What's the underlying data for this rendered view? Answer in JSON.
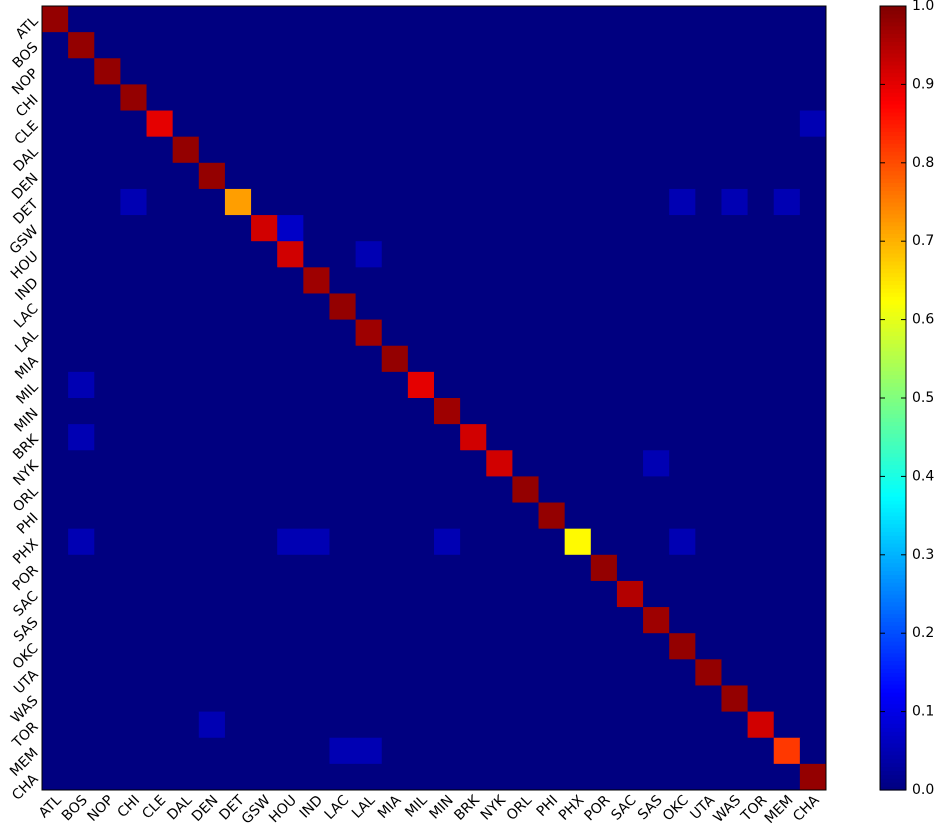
{
  "chart_data": {
    "type": "heatmap",
    "x_categories": [
      "ATL",
      "BOS",
      "NOP",
      "CHI",
      "CLE",
      "DAL",
      "DEN",
      "DET",
      "GSW",
      "HOU",
      "IND",
      "LAC",
      "LAL",
      "MIA",
      "MIL",
      "MIN",
      "BRK",
      "NYK",
      "ORL",
      "PHI",
      "PHX",
      "POR",
      "SAC",
      "SAS",
      "OKC",
      "UTA",
      "WAS",
      "TOR",
      "MEM",
      "CHA"
    ],
    "y_categories": [
      "ATL",
      "BOS",
      "NOP",
      "CHI",
      "CLE",
      "DAL",
      "DEN",
      "DET",
      "GSW",
      "HOU",
      "IND",
      "LAC",
      "LAL",
      "MIA",
      "MIL",
      "MIN",
      "BRK",
      "NYK",
      "ORL",
      "PHI",
      "PHX",
      "POR",
      "SAC",
      "SAS",
      "OKC",
      "UTA",
      "WAS",
      "TOR",
      "MEM",
      "CHA"
    ],
    "values": [
      [
        0.98,
        0,
        0,
        0,
        0,
        0,
        0,
        0,
        0,
        0,
        0,
        0,
        0,
        0,
        0,
        0,
        0,
        0,
        0,
        0,
        0,
        0,
        0,
        0,
        0,
        0,
        0,
        0,
        0,
        0
      ],
      [
        0,
        0.98,
        0,
        0,
        0,
        0,
        0,
        0,
        0,
        0,
        0,
        0,
        0,
        0,
        0,
        0,
        0,
        0,
        0,
        0,
        0,
        0,
        0,
        0,
        0,
        0,
        0,
        0,
        0,
        0
      ],
      [
        0,
        0,
        0.98,
        0,
        0,
        0,
        0,
        0,
        0,
        0,
        0,
        0,
        0,
        0,
        0,
        0,
        0,
        0,
        0,
        0,
        0,
        0,
        0,
        0,
        0,
        0,
        0,
        0,
        0,
        0
      ],
      [
        0,
        0,
        0,
        0.98,
        0,
        0,
        0,
        0,
        0,
        0,
        0,
        0,
        0,
        0,
        0,
        0,
        0,
        0,
        0,
        0,
        0,
        0,
        0,
        0,
        0,
        0,
        0,
        0,
        0,
        0
      ],
      [
        0,
        0,
        0,
        0,
        0.9,
        0,
        0,
        0,
        0,
        0,
        0,
        0,
        0,
        0,
        0,
        0,
        0,
        0,
        0,
        0,
        0,
        0,
        0,
        0,
        0,
        0,
        0,
        0,
        0,
        0.05
      ],
      [
        0,
        0,
        0,
        0,
        0,
        0.98,
        0,
        0,
        0,
        0,
        0,
        0,
        0,
        0,
        0,
        0,
        0,
        0,
        0,
        0,
        0,
        0,
        0,
        0,
        0,
        0,
        0,
        0,
        0,
        0
      ],
      [
        0,
        0,
        0,
        0,
        0,
        0,
        0.98,
        0,
        0,
        0,
        0,
        0,
        0,
        0,
        0,
        0,
        0,
        0,
        0,
        0,
        0,
        0,
        0,
        0,
        0,
        0,
        0,
        0,
        0,
        0
      ],
      [
        0,
        0,
        0,
        0.05,
        0,
        0,
        0,
        0.72,
        0,
        0,
        0,
        0,
        0,
        0,
        0,
        0,
        0,
        0,
        0,
        0,
        0,
        0,
        0,
        0,
        0.05,
        0,
        0.05,
        0,
        0.05,
        0
      ],
      [
        0,
        0,
        0,
        0,
        0,
        0,
        0,
        0,
        0.92,
        0.07,
        0,
        0,
        0,
        0,
        0,
        0,
        0,
        0,
        0,
        0,
        0,
        0,
        0,
        0,
        0,
        0,
        0,
        0,
        0,
        0
      ],
      [
        0,
        0,
        0,
        0,
        0,
        0,
        0,
        0,
        0,
        0.92,
        0,
        0,
        0.05,
        0,
        0,
        0,
        0,
        0,
        0,
        0,
        0,
        0,
        0,
        0,
        0,
        0,
        0,
        0,
        0,
        0
      ],
      [
        0,
        0,
        0,
        0,
        0,
        0,
        0,
        0,
        0,
        0,
        0.97,
        0,
        0,
        0,
        0,
        0,
        0,
        0,
        0,
        0,
        0,
        0,
        0,
        0,
        0,
        0,
        0,
        0,
        0,
        0
      ],
      [
        0,
        0,
        0,
        0,
        0,
        0,
        0,
        0,
        0,
        0,
        0,
        0.98,
        0,
        0,
        0,
        0,
        0,
        0,
        0,
        0,
        0,
        0,
        0,
        0,
        0,
        0,
        0,
        0,
        0,
        0
      ],
      [
        0,
        0,
        0,
        0,
        0,
        0,
        0,
        0,
        0,
        0,
        0,
        0,
        0.97,
        0,
        0,
        0,
        0,
        0,
        0,
        0,
        0,
        0,
        0,
        0,
        0,
        0,
        0,
        0,
        0,
        0
      ],
      [
        0,
        0,
        0,
        0,
        0,
        0,
        0,
        0,
        0,
        0,
        0,
        0,
        0,
        0.98,
        0,
        0,
        0,
        0,
        0,
        0,
        0,
        0,
        0,
        0,
        0,
        0,
        0,
        0,
        0,
        0
      ],
      [
        0,
        0.05,
        0,
        0,
        0,
        0,
        0,
        0,
        0,
        0,
        0,
        0,
        0,
        0,
        0.9,
        0,
        0,
        0,
        0,
        0,
        0,
        0,
        0,
        0,
        0,
        0,
        0,
        0,
        0,
        0
      ],
      [
        0,
        0,
        0,
        0,
        0,
        0,
        0,
        0,
        0,
        0,
        0,
        0,
        0,
        0,
        0,
        0.97,
        0,
        0,
        0,
        0,
        0,
        0,
        0,
        0,
        0,
        0,
        0,
        0,
        0,
        0
      ],
      [
        0,
        0.05,
        0,
        0,
        0,
        0,
        0,
        0,
        0,
        0,
        0,
        0,
        0,
        0,
        0,
        0,
        0.92,
        0,
        0,
        0,
        0,
        0,
        0,
        0,
        0,
        0,
        0,
        0,
        0,
        0
      ],
      [
        0,
        0,
        0,
        0,
        0,
        0,
        0,
        0,
        0,
        0,
        0,
        0,
        0,
        0,
        0,
        0,
        0,
        0.92,
        0,
        0,
        0,
        0,
        0,
        0.05,
        0,
        0,
        0,
        0,
        0,
        0
      ],
      [
        0,
        0,
        0,
        0,
        0,
        0,
        0,
        0,
        0,
        0,
        0,
        0,
        0,
        0,
        0,
        0,
        0,
        0,
        0.98,
        0,
        0,
        0,
        0,
        0,
        0,
        0,
        0,
        0,
        0,
        0
      ],
      [
        0,
        0,
        0,
        0,
        0,
        0,
        0,
        0,
        0,
        0,
        0,
        0,
        0,
        0,
        0,
        0,
        0,
        0,
        0,
        0.98,
        0,
        0,
        0,
        0,
        0,
        0,
        0,
        0,
        0,
        0
      ],
      [
        0,
        0.05,
        0,
        0,
        0,
        0,
        0,
        0,
        0,
        0.05,
        0.05,
        0,
        0,
        0,
        0,
        0.05,
        0,
        0,
        0,
        0,
        0.63,
        0,
        0,
        0,
        0.05,
        0,
        0,
        0,
        0,
        0
      ],
      [
        0,
        0,
        0,
        0,
        0,
        0,
        0,
        0,
        0,
        0,
        0,
        0,
        0,
        0,
        0,
        0,
        0,
        0,
        0,
        0,
        0,
        0.98,
        0,
        0,
        0,
        0,
        0,
        0,
        0,
        0
      ],
      [
        0,
        0,
        0,
        0,
        0,
        0,
        0,
        0,
        0,
        0,
        0,
        0,
        0,
        0,
        0,
        0,
        0,
        0,
        0,
        0,
        0,
        0,
        0.95,
        0,
        0,
        0,
        0,
        0,
        0,
        0
      ],
      [
        0,
        0,
        0,
        0,
        0,
        0,
        0,
        0,
        0,
        0,
        0,
        0,
        0,
        0,
        0,
        0,
        0,
        0,
        0,
        0,
        0,
        0,
        0,
        0.97,
        0,
        0,
        0,
        0,
        0,
        0
      ],
      [
        0,
        0,
        0,
        0,
        0,
        0,
        0,
        0,
        0,
        0,
        0,
        0,
        0,
        0,
        0,
        0,
        0,
        0,
        0,
        0,
        0,
        0,
        0,
        0,
        0.98,
        0,
        0,
        0,
        0,
        0
      ],
      [
        0,
        0,
        0,
        0,
        0,
        0,
        0,
        0,
        0,
        0,
        0,
        0,
        0,
        0,
        0,
        0,
        0,
        0,
        0,
        0,
        0,
        0,
        0,
        0,
        0,
        0.98,
        0,
        0,
        0,
        0
      ],
      [
        0,
        0,
        0,
        0,
        0,
        0,
        0,
        0,
        0,
        0,
        0,
        0,
        0,
        0,
        0,
        0,
        0,
        0,
        0,
        0,
        0,
        0,
        0,
        0,
        0,
        0,
        0.98,
        0,
        0,
        0
      ],
      [
        0,
        0,
        0,
        0,
        0,
        0,
        0.05,
        0,
        0,
        0,
        0,
        0,
        0,
        0,
        0,
        0,
        0,
        0,
        0,
        0,
        0,
        0,
        0,
        0,
        0,
        0,
        0,
        0.92,
        0,
        0
      ],
      [
        0,
        0,
        0,
        0,
        0,
        0,
        0,
        0,
        0,
        0,
        0,
        0.05,
        0.05,
        0,
        0,
        0,
        0,
        0,
        0,
        0,
        0,
        0,
        0,
        0,
        0,
        0,
        0,
        0,
        0.82,
        0
      ],
      [
        0,
        0,
        0,
        0,
        0,
        0,
        0,
        0,
        0,
        0,
        0,
        0,
        0,
        0,
        0,
        0,
        0,
        0,
        0,
        0,
        0,
        0,
        0,
        0,
        0,
        0,
        0,
        0,
        0,
        0.98
      ]
    ],
    "colormap": "jet",
    "clim": [
      0,
      1
    ],
    "cticks": [
      {
        "value": 0,
        "label": "0.0"
      },
      {
        "value": 0.1,
        "label": "0.1"
      },
      {
        "value": 0.2,
        "label": "0.2"
      },
      {
        "value": 0.3,
        "label": "0.3"
      },
      {
        "value": 0.4,
        "label": "0.4"
      },
      {
        "value": 0.5,
        "label": "0.5"
      },
      {
        "value": 0.6,
        "label": "0.6"
      },
      {
        "value": 0.7,
        "label": "0.7"
      },
      {
        "value": 0.8,
        "label": "0.8"
      },
      {
        "value": 0.9,
        "label": "0.9"
      },
      {
        "value": 1,
        "label": "1.0"
      }
    ]
  }
}
